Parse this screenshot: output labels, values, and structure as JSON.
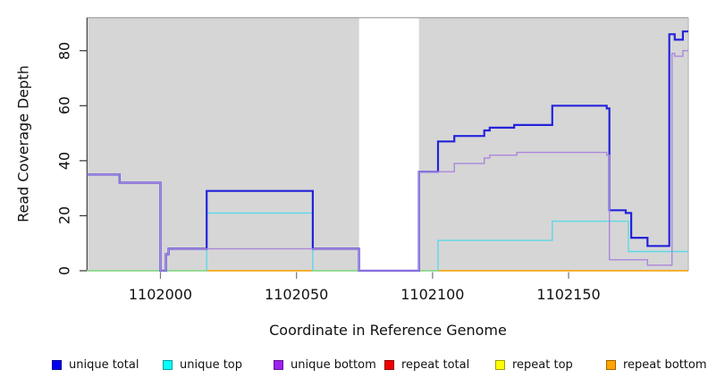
{
  "chart_data": {
    "type": "line",
    "subtype": "step-coverage-plot",
    "title": "",
    "xlabel": "Coordinate in Reference Genome",
    "ylabel": "Read Coverage Depth",
    "x_ticks": [
      1102000,
      1102050,
      1102100,
      1102150
    ],
    "y_ticks": [
      0,
      20,
      40,
      60,
      80
    ],
    "x_range": [
      1101973,
      1102194
    ],
    "y_range": [
      0,
      92
    ],
    "grid": "off",
    "legend_position": "bottom",
    "plot_bg_color": "#d6d6d6",
    "masked_region": {
      "from": 1102073,
      "to": 1102095,
      "color": "#ffffff"
    },
    "series": [
      {
        "name": "unique total",
        "line_color": "#2323DC",
        "width": 2.2,
        "steps": [
          [
            1101973,
            35
          ],
          [
            1101985,
            32
          ],
          [
            1102000,
            0
          ],
          [
            1102002,
            6
          ],
          [
            1102003,
            8
          ],
          [
            1102017,
            29
          ],
          [
            1102056,
            8
          ],
          [
            1102073,
            0
          ],
          [
            1102095,
            36
          ],
          [
            1102102,
            47
          ],
          [
            1102108,
            49
          ],
          [
            1102119,
            51
          ],
          [
            1102121,
            52
          ],
          [
            1102130,
            53
          ],
          [
            1102144,
            60
          ],
          [
            1102164,
            59
          ],
          [
            1102165,
            22
          ],
          [
            1102171,
            21
          ],
          [
            1102173,
            12
          ],
          [
            1102179,
            9
          ],
          [
            1102187,
            86
          ],
          [
            1102189,
            84
          ],
          [
            1102192,
            87
          ]
        ]
      },
      {
        "name": "unique top",
        "line_color": "#5BD9E6",
        "width": 1.4,
        "steps": [
          [
            1101973,
            0
          ],
          [
            1102017,
            21
          ],
          [
            1102056,
            0
          ],
          [
            1102102,
            11
          ],
          [
            1102144,
            18
          ],
          [
            1102172,
            7
          ]
        ]
      },
      {
        "name": "unique bottom",
        "line_color": "#AB87DC",
        "width": 1.4,
        "steps": [
          [
            1101973,
            35
          ],
          [
            1101985,
            32
          ],
          [
            1102000,
            0
          ],
          [
            1102002,
            6
          ],
          [
            1102003,
            8
          ],
          [
            1102073,
            0
          ],
          [
            1102095,
            36
          ],
          [
            1102108,
            39
          ],
          [
            1102119,
            41
          ],
          [
            1102121,
            42
          ],
          [
            1102131,
            43
          ],
          [
            1102164,
            42
          ],
          [
            1102165,
            4
          ],
          [
            1102179,
            2
          ],
          [
            1102188,
            79
          ],
          [
            1102189,
            78
          ],
          [
            1102192,
            80
          ]
        ]
      },
      {
        "name": "repeat total",
        "line_color": "#E02020",
        "width": 1.2,
        "steps": [
          [
            1101973,
            0
          ]
        ]
      },
      {
        "name": "repeat top",
        "line_color": "#F0F000",
        "width": 1.2,
        "steps": [
          [
            1101973,
            0
          ]
        ]
      },
      {
        "name": "repeat bottom",
        "line_color": "#FFA500",
        "width": 1.3,
        "steps": [
          [
            1101973,
            0
          ]
        ]
      }
    ],
    "draw_order": [
      "repeat total",
      "repeat top",
      "repeat bottom",
      "unique top",
      "zero-blend",
      "unique total",
      "unique bottom"
    ],
    "zero_line_blend": {
      "color": "#8DE48D",
      "segments": [
        [
          1101973,
          1102017
        ],
        [
          1102056,
          1102073
        ],
        [
          1102095,
          1102102
        ]
      ]
    }
  },
  "legend": {
    "items": [
      {
        "label": "unique total",
        "swatch_color": "#0000EE"
      },
      {
        "label": "unique top",
        "swatch_color": "#00FFFF"
      },
      {
        "label": "unique bottom",
        "swatch_color": "#A020F0"
      },
      {
        "label": "repeat total",
        "swatch_color": "#EE0000"
      },
      {
        "label": "repeat top",
        "swatch_color": "#FFFF00"
      },
      {
        "label": "repeat bottom",
        "swatch_color": "#FFA500"
      }
    ]
  }
}
